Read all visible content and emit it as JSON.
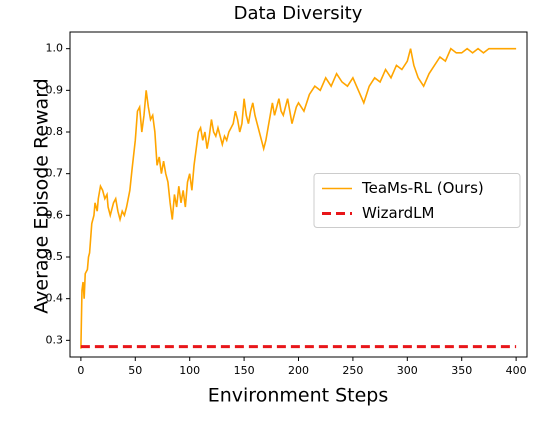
{
  "chart_data": {
    "type": "line",
    "title": "Data Diversity",
    "xlabel": "Environment Steps",
    "ylabel": "Average Episode Reward",
    "xlim": [
      -10,
      410
    ],
    "ylim": [
      0.26,
      1.04
    ],
    "xticks": [
      0,
      50,
      100,
      150,
      200,
      250,
      300,
      350,
      400
    ],
    "yticks": [
      {
        "value": 0.3,
        "label": "0.3"
      },
      {
        "value": 0.4,
        "label": "0.4"
      },
      {
        "value": 0.5,
        "label": "0.5"
      },
      {
        "value": 0.6,
        "label": "0.6"
      },
      {
        "value": 0.7,
        "label": "0.7"
      },
      {
        "value": 0.8,
        "label": "0.8"
      },
      {
        "value": 0.9,
        "label": "0.9"
      },
      {
        "value": 1.0,
        "label": "1.0"
      }
    ],
    "grid": false,
    "legend": "center right",
    "series": [
      {
        "name": "TeaMs-RL (Ours)",
        "color": "#ffa500",
        "dash": false,
        "x": [
          0,
          1,
          2,
          3,
          4,
          6,
          7,
          8,
          10,
          12,
          13,
          15,
          16,
          18,
          20,
          22,
          24,
          25,
          27,
          30,
          32,
          34,
          36,
          38,
          40,
          42,
          45,
          47,
          50,
          52,
          54,
          56,
          58,
          60,
          62,
          64,
          66,
          68,
          70,
          72,
          74,
          76,
          78,
          80,
          82,
          84,
          86,
          88,
          90,
          92,
          94,
          96,
          98,
          100,
          102,
          104,
          106,
          108,
          110,
          112,
          114,
          116,
          118,
          120,
          122,
          124,
          126,
          128,
          130,
          132,
          134,
          136,
          138,
          140,
          142,
          144,
          146,
          148,
          150,
          152,
          154,
          156,
          158,
          160,
          162,
          164,
          166,
          168,
          170,
          172,
          174,
          176,
          178,
          180,
          182,
          184,
          186,
          188,
          190,
          192,
          194,
          196,
          198,
          200,
          205,
          210,
          215,
          220,
          225,
          230,
          235,
          240,
          245,
          250,
          255,
          260,
          265,
          270,
          275,
          280,
          285,
          290,
          295,
          300,
          303,
          306,
          310,
          315,
          320,
          325,
          330,
          335,
          340,
          345,
          350,
          355,
          360,
          365,
          370,
          375,
          400
        ],
        "values": [
          0.28,
          0.42,
          0.44,
          0.4,
          0.46,
          0.47,
          0.5,
          0.51,
          0.58,
          0.6,
          0.63,
          0.61,
          0.64,
          0.67,
          0.66,
          0.64,
          0.65,
          0.62,
          0.6,
          0.63,
          0.64,
          0.61,
          0.59,
          0.61,
          0.6,
          0.62,
          0.66,
          0.71,
          0.78,
          0.85,
          0.86,
          0.8,
          0.84,
          0.9,
          0.86,
          0.83,
          0.84,
          0.8,
          0.72,
          0.74,
          0.7,
          0.73,
          0.7,
          0.68,
          0.63,
          0.59,
          0.65,
          0.62,
          0.67,
          0.63,
          0.66,
          0.62,
          0.68,
          0.7,
          0.66,
          0.72,
          0.76,
          0.8,
          0.81,
          0.78,
          0.8,
          0.76,
          0.79,
          0.83,
          0.8,
          0.79,
          0.81,
          0.79,
          0.77,
          0.79,
          0.78,
          0.8,
          0.81,
          0.82,
          0.85,
          0.83,
          0.8,
          0.82,
          0.88,
          0.84,
          0.82,
          0.85,
          0.87,
          0.84,
          0.82,
          0.8,
          0.78,
          0.76,
          0.78,
          0.81,
          0.84,
          0.87,
          0.84,
          0.86,
          0.88,
          0.85,
          0.84,
          0.86,
          0.88,
          0.85,
          0.82,
          0.84,
          0.86,
          0.87,
          0.85,
          0.89,
          0.91,
          0.9,
          0.93,
          0.91,
          0.94,
          0.92,
          0.91,
          0.93,
          0.9,
          0.87,
          0.91,
          0.93,
          0.92,
          0.95,
          0.93,
          0.96,
          0.95,
          0.97,
          1.0,
          0.96,
          0.93,
          0.91,
          0.94,
          0.96,
          0.98,
          0.97,
          1.0,
          0.99,
          0.99,
          1.0,
          0.99,
          1.0,
          0.99,
          1.0,
          1.0
        ]
      },
      {
        "name": "WizardLM",
        "color": "#e8161a",
        "dash": true,
        "x": [
          0,
          400
        ],
        "values": [
          0.285,
          0.285
        ]
      }
    ]
  }
}
